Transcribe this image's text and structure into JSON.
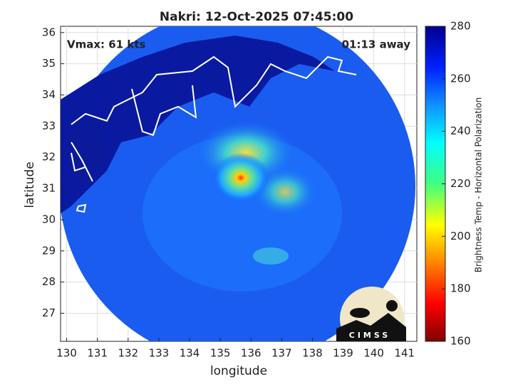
{
  "title": "Nakri: 12-Oct-2025 07:45:00",
  "annotations": {
    "vmax": "Vmax: 61 kts",
    "time_away": "01:13 away"
  },
  "x_axis": {
    "label": "longitude",
    "lim": [
      129.8,
      141.4
    ],
    "ticks": [
      130,
      131,
      132,
      133,
      134,
      135,
      136,
      137,
      138,
      139,
      140,
      141
    ]
  },
  "y_axis": {
    "label": "latitude",
    "lim": [
      26.1,
      36.2
    ],
    "ticks": [
      27,
      28,
      29,
      30,
      31,
      32,
      33,
      34,
      35,
      36
    ]
  },
  "grid": true,
  "colorbar": {
    "label": "Brightness Temp - Horizontal Polarization",
    "lim": [
      160,
      280
    ],
    "ticks": [
      160,
      180,
      200,
      220,
      240,
      260,
      280
    ]
  },
  "logo": "CIMSS"
}
